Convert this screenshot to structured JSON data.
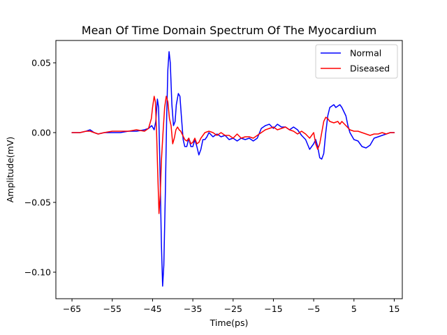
{
  "chart_data": {
    "type": "line",
    "title": "Mean Of Time Domain Spectrum Of The Myocardium",
    "xlabel": "Time(ps)",
    "ylabel": "Amplitude(mV)",
    "xlim": [
      -69,
      17
    ],
    "ylim": [
      -0.119,
      0.066
    ],
    "xticks": [
      -65,
      -55,
      -45,
      -35,
      -25,
      -15,
      -5,
      5,
      15
    ],
    "xtick_labels": [
      "−65",
      "−55",
      "−45",
      "−35",
      "−25",
      "−15",
      "−5",
      "5",
      "15"
    ],
    "yticks": [
      -0.1,
      -0.05,
      0.0,
      0.05
    ],
    "ytick_labels": [
      "−0.10",
      "−0.05",
      "0.00",
      "0.05"
    ],
    "grid": false,
    "legend_position": "top-right",
    "series": [
      {
        "name": "Normal",
        "color": "#0000ff",
        "points": [
          [
            -65,
            0
          ],
          [
            -63,
            0
          ],
          [
            -61.5,
            0.001
          ],
          [
            -60.5,
            0.002
          ],
          [
            -59.5,
            0
          ],
          [
            -58.5,
            -0.001
          ],
          [
            -57,
            0
          ],
          [
            -55,
            0
          ],
          [
            -53,
            0
          ],
          [
            -51,
            0.001
          ],
          [
            -49,
            0.001
          ],
          [
            -47,
            0.002
          ],
          [
            -46,
            0.003
          ],
          [
            -45.2,
            0.005
          ],
          [
            -44.6,
            0.002
          ],
          [
            -44.2,
            0.008
          ],
          [
            -43.8,
            0.024
          ],
          [
            -43.5,
            0.018
          ],
          [
            -43.2,
            -0.02
          ],
          [
            -42.8,
            -0.08
          ],
          [
            -42.5,
            -0.11
          ],
          [
            -42.2,
            -0.095
          ],
          [
            -41.8,
            -0.04
          ],
          [
            -41.5,
            0.01
          ],
          [
            -41.2,
            0.045
          ],
          [
            -40.9,
            0.058
          ],
          [
            -40.6,
            0.05
          ],
          [
            -40.2,
            0.02
          ],
          [
            -39.8,
            0.005
          ],
          [
            -39.4,
            0.008
          ],
          [
            -39.1,
            0.02
          ],
          [
            -38.6,
            0.028
          ],
          [
            -38.2,
            0.026
          ],
          [
            -37.8,
            0.01
          ],
          [
            -37.4,
            -0.005
          ],
          [
            -37,
            -0.01
          ],
          [
            -36.5,
            -0.01
          ],
          [
            -36,
            -0.004
          ],
          [
            -35.5,
            -0.01
          ],
          [
            -35,
            -0.01
          ],
          [
            -34.5,
            -0.005
          ],
          [
            -34,
            -0.01
          ],
          [
            -33.5,
            -0.016
          ],
          [
            -33,
            -0.012
          ],
          [
            -32.5,
            -0.005
          ],
          [
            -32,
            -0.005
          ],
          [
            -31.5,
            -0.003
          ],
          [
            -31,
            0
          ],
          [
            -30,
            -0.003
          ],
          [
            -29,
            -0.001
          ],
          [
            -28,
            -0.003
          ],
          [
            -27,
            -0.002
          ],
          [
            -26,
            -0.005
          ],
          [
            -25,
            -0.004
          ],
          [
            -24,
            -0.006
          ],
          [
            -23,
            -0.004
          ],
          [
            -22,
            -0.005
          ],
          [
            -21,
            -0.004
          ],
          [
            -20,
            -0.006
          ],
          [
            -19,
            -0.004
          ],
          [
            -18,
            0.003
          ],
          [
            -17,
            0.005
          ],
          [
            -16,
            0.006
          ],
          [
            -15,
            0.003
          ],
          [
            -14,
            0.006
          ],
          [
            -13,
            0.004
          ],
          [
            -12,
            0.004
          ],
          [
            -11,
            0.002
          ],
          [
            -10,
            0.004
          ],
          [
            -9,
            0.002
          ],
          [
            -8,
            -0.002
          ],
          [
            -7,
            -0.005
          ],
          [
            -6,
            -0.012
          ],
          [
            -5,
            -0.008
          ],
          [
            -4.5,
            -0.005
          ],
          [
            -4,
            -0.01
          ],
          [
            -3.5,
            -0.018
          ],
          [
            -3,
            -0.019
          ],
          [
            -2.5,
            -0.015
          ],
          [
            -2,
            0
          ],
          [
            -1.5,
            0.012
          ],
          [
            -1,
            0.018
          ],
          [
            0,
            0.02
          ],
          [
            0.5,
            0.018
          ],
          [
            1,
            0.019
          ],
          [
            1.5,
            0.02
          ],
          [
            2,
            0.018
          ],
          [
            3,
            0.012
          ],
          [
            3.5,
            0.005
          ],
          [
            4,
            0
          ],
          [
            5,
            -0.005
          ],
          [
            6,
            -0.006
          ],
          [
            7,
            -0.01
          ],
          [
            8,
            -0.011
          ],
          [
            9,
            -0.009
          ],
          [
            10,
            -0.004
          ],
          [
            11,
            -0.003
          ],
          [
            12,
            -0.002
          ],
          [
            13,
            -0.001
          ],
          [
            14,
            0
          ],
          [
            15,
            0
          ]
        ]
      },
      {
        "name": "Diseased",
        "color": "#ff0000",
        "points": [
          [
            -65,
            0
          ],
          [
            -63,
            0
          ],
          [
            -61.5,
            0.001
          ],
          [
            -60.5,
            0.001
          ],
          [
            -59.5,
            0
          ],
          [
            -58.5,
            -0.001
          ],
          [
            -57,
            0
          ],
          [
            -55,
            0.001
          ],
          [
            -53,
            0.001
          ],
          [
            -51,
            0.001
          ],
          [
            -49,
            0.002
          ],
          [
            -47,
            0.001
          ],
          [
            -46,
            0.003
          ],
          [
            -45.3,
            0.01
          ],
          [
            -45,
            0.018
          ],
          [
            -44.6,
            0.026
          ],
          [
            -44.3,
            0.022
          ],
          [
            -44,
            0
          ],
          [
            -43.7,
            -0.03
          ],
          [
            -43.4,
            -0.058
          ],
          [
            -43.1,
            -0.045
          ],
          [
            -42.8,
            -0.02
          ],
          [
            -42.4,
            0
          ],
          [
            -42,
            0.018
          ],
          [
            -41.6,
            0.026
          ],
          [
            -41.2,
            0.022
          ],
          [
            -40.8,
            0.01
          ],
          [
            -40.4,
            0.005
          ],
          [
            -40,
            -0.008
          ],
          [
            -39.6,
            -0.004
          ],
          [
            -39.2,
            0.002
          ],
          [
            -38.8,
            0.004
          ],
          [
            -38.4,
            0.002
          ],
          [
            -38,
            0.001
          ],
          [
            -37.5,
            -0.002
          ],
          [
            -37,
            -0.005
          ],
          [
            -36.5,
            -0.006
          ],
          [
            -36,
            -0.004
          ],
          [
            -35.5,
            -0.008
          ],
          [
            -35,
            -0.007
          ],
          [
            -34.5,
            -0.004
          ],
          [
            -34,
            -0.008
          ],
          [
            -33.5,
            -0.007
          ],
          [
            -33,
            -0.004
          ],
          [
            -32,
            0
          ],
          [
            -31,
            0.001
          ],
          [
            -30,
            0
          ],
          [
            -29,
            -0.002
          ],
          [
            -28,
            0
          ],
          [
            -27,
            -0.002
          ],
          [
            -26,
            -0.002
          ],
          [
            -25,
            -0.004
          ],
          [
            -24,
            -0.001
          ],
          [
            -23,
            -0.004
          ],
          [
            -22,
            -0.003
          ],
          [
            -21,
            -0.003
          ],
          [
            -20,
            -0.004
          ],
          [
            -19,
            -0.002
          ],
          [
            -18,
            0
          ],
          [
            -17,
            0.002
          ],
          [
            -16,
            0.003
          ],
          [
            -15,
            0.004
          ],
          [
            -14,
            0.002
          ],
          [
            -13,
            0.003
          ],
          [
            -12,
            0.004
          ],
          [
            -11,
            0.002
          ],
          [
            -10,
            0.001
          ],
          [
            -9,
            -0.001
          ],
          [
            -8,
            0.001
          ],
          [
            -7,
            -0.001
          ],
          [
            -6,
            -0.004
          ],
          [
            -5.5,
            -0.002
          ],
          [
            -5,
            0
          ],
          [
            -4.5,
            -0.008
          ],
          [
            -4,
            -0.012
          ],
          [
            -3.5,
            -0.008
          ],
          [
            -3,
            0
          ],
          [
            -2.5,
            0.008
          ],
          [
            -2,
            0.011
          ],
          [
            -1.5,
            0.01
          ],
          [
            -1,
            0.008
          ],
          [
            0,
            0.007
          ],
          [
            1,
            0.008
          ],
          [
            1.5,
            0.006
          ],
          [
            2,
            0.008
          ],
          [
            3,
            0.005
          ],
          [
            4,
            0.002
          ],
          [
            5,
            0.001
          ],
          [
            6,
            0.001
          ],
          [
            7,
            0
          ],
          [
            8,
            -0.001
          ],
          [
            9,
            -0.002
          ],
          [
            10,
            -0.001
          ],
          [
            11,
            -0.001
          ],
          [
            12,
            0
          ],
          [
            13,
            -0.001
          ],
          [
            14,
            0
          ],
          [
            15,
            0
          ]
        ]
      }
    ]
  }
}
